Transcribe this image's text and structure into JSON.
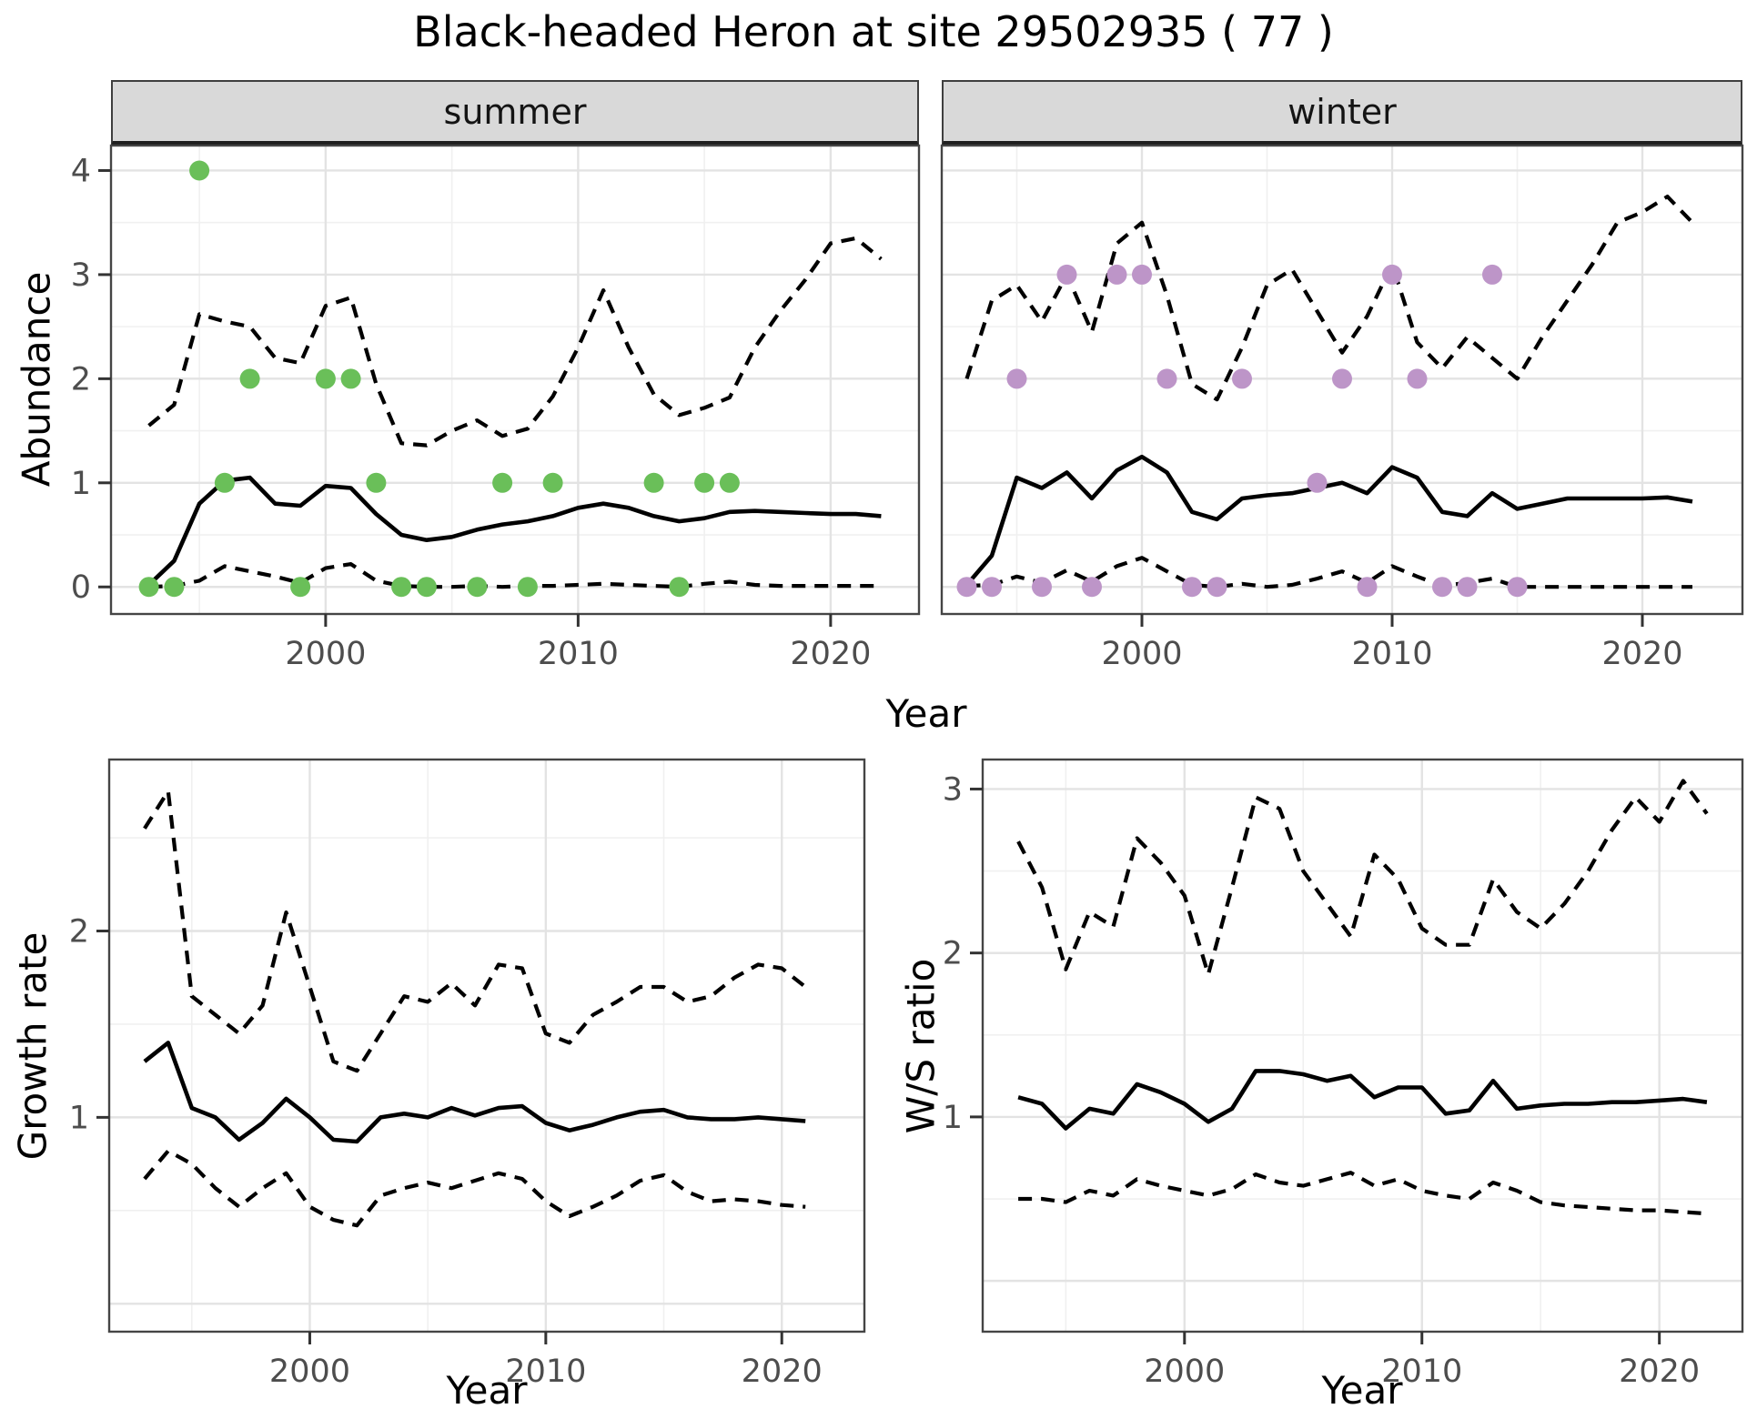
{
  "chart_data": {
    "type": "line",
    "title": "Black-headed Heron at site 29502935 ( 77 )",
    "xlabel": "Year",
    "grid": "major+minor",
    "legend": "none",
    "x_ticks": [
      2000,
      2010,
      2020
    ],
    "x_minor_ticks": [
      1995,
      2005,
      2015
    ],
    "colors": {
      "summer_points": "#6abf59",
      "winter_points": "#bd95c8",
      "lines": "#000000",
      "strip_bg": "#d9d9d9",
      "grid_major": "#e3e3e3",
      "grid_minor": "#f0f0f0"
    },
    "facets": [
      {
        "key": "summer",
        "facet_label": "summer",
        "ylabel": "Abundance",
        "xlim": [
          1991.5,
          2023.5
        ],
        "ylim": [
          -0.26,
          4.24
        ],
        "y_ticks": [
          0,
          1,
          2,
          3,
          4
        ],
        "series": [
          {
            "name": "upper-ci",
            "style": "dashed",
            "x": [
              1993,
              1994,
              1995,
              1996,
              1997,
              1998,
              1999,
              2000,
              2001,
              2002,
              2003,
              2004,
              2005,
              2006,
              2007,
              2008,
              2009,
              2010,
              2011,
              2012,
              2013,
              2014,
              2015,
              2016,
              2017,
              2018,
              2019,
              2020,
              2021,
              2022
            ],
            "y": [
              1.55,
              1.75,
              2.62,
              2.55,
              2.5,
              2.2,
              2.15,
              2.7,
              2.78,
              1.95,
              1.38,
              1.36,
              1.5,
              1.6,
              1.45,
              1.52,
              1.83,
              2.3,
              2.85,
              2.3,
              1.85,
              1.65,
              1.72,
              1.82,
              2.3,
              2.65,
              2.95,
              3.3,
              3.35,
              3.15
            ]
          },
          {
            "name": "median",
            "style": "solid",
            "x": [
              1993,
              1994,
              1995,
              1996,
              1997,
              1998,
              1999,
              2000,
              2001,
              2002,
              2003,
              2004,
              2005,
              2006,
              2007,
              2008,
              2009,
              2010,
              2011,
              2012,
              2013,
              2014,
              2015,
              2016,
              2017,
              2018,
              2019,
              2020,
              2021,
              2022
            ],
            "y": [
              0.02,
              0.25,
              0.8,
              1.02,
              1.05,
              0.8,
              0.78,
              0.97,
              0.95,
              0.7,
              0.5,
              0.45,
              0.48,
              0.55,
              0.6,
              0.63,
              0.68,
              0.76,
              0.8,
              0.76,
              0.68,
              0.63,
              0.66,
              0.72,
              0.73,
              0.72,
              0.71,
              0.7,
              0.7,
              0.68
            ]
          },
          {
            "name": "lower-ci",
            "style": "dashed",
            "x": [
              1993,
              1994,
              1995,
              1996,
              1997,
              1998,
              1999,
              2000,
              2001,
              2002,
              2003,
              2004,
              2005,
              2006,
              2007,
              2008,
              2009,
              2010,
              2011,
              2012,
              2013,
              2014,
              2015,
              2016,
              2017,
              2018,
              2019,
              2020,
              2021,
              2022
            ],
            "y": [
              0.0,
              0.01,
              0.06,
              0.2,
              0.15,
              0.1,
              0.04,
              0.18,
              0.22,
              0.06,
              0.01,
              0.0,
              0.0,
              0.01,
              0.0,
              0.01,
              0.01,
              0.02,
              0.03,
              0.02,
              0.01,
              0.0,
              0.03,
              0.05,
              0.02,
              0.01,
              0.01,
              0.01,
              0.01,
              0.01
            ]
          },
          {
            "name": "observations",
            "style": "points",
            "color": "#6abf59",
            "x": [
              1993,
              1994,
              1995,
              1996,
              1997,
              1999,
              2000,
              2001,
              2002,
              2003,
              2004,
              2006,
              2007,
              2008,
              2009,
              2013,
              2014,
              2015,
              2016
            ],
            "y": [
              0,
              0,
              4,
              1,
              2,
              0,
              2,
              2,
              1,
              0,
              0,
              0,
              1,
              0,
              1,
              1,
              0,
              1,
              1
            ]
          }
        ]
      },
      {
        "key": "winter",
        "facet_label": "winter",
        "ylabel": "Abundance",
        "xlim": [
          1992,
          2024
        ],
        "ylim": [
          -0.26,
          4.24
        ],
        "y_ticks": [],
        "series": [
          {
            "name": "upper-ci",
            "style": "dashed",
            "x": [
              1993,
              1994,
              1995,
              1996,
              1997,
              1998,
              1999,
              2000,
              2001,
              2002,
              2003,
              2004,
              2005,
              2006,
              2007,
              2008,
              2009,
              2010,
              2011,
              2012,
              2013,
              2014,
              2015,
              2016,
              2017,
              2018,
              2019,
              2020,
              2021,
              2022
            ],
            "y": [
              2.0,
              2.75,
              2.9,
              2.55,
              3.0,
              2.45,
              3.3,
              3.5,
              2.8,
              1.95,
              1.8,
              2.3,
              2.9,
              3.05,
              2.65,
              2.25,
              2.6,
              3.1,
              2.35,
              2.1,
              2.4,
              2.2,
              2.0,
              2.4,
              2.75,
              3.1,
              3.5,
              3.6,
              3.75,
              3.5
            ]
          },
          {
            "name": "median",
            "style": "solid",
            "x": [
              1993,
              1994,
              1995,
              1996,
              1997,
              1998,
              1999,
              2000,
              2001,
              2002,
              2003,
              2004,
              2005,
              2006,
              2007,
              2008,
              2009,
              2010,
              2011,
              2012,
              2013,
              2014,
              2015,
              2016,
              2017,
              2018,
              2019,
              2020,
              2021,
              2022
            ],
            "y": [
              0.02,
              0.3,
              1.05,
              0.95,
              1.1,
              0.85,
              1.12,
              1.25,
              1.1,
              0.72,
              0.65,
              0.85,
              0.88,
              0.9,
              0.95,
              1.0,
              0.9,
              1.15,
              1.05,
              0.72,
              0.68,
              0.9,
              0.75,
              0.8,
              0.85,
              0.85,
              0.85,
              0.85,
              0.86,
              0.82
            ]
          },
          {
            "name": "lower-ci",
            "style": "dashed",
            "x": [
              1993,
              1994,
              1995,
              1996,
              1997,
              1998,
              1999,
              2000,
              2001,
              2002,
              2003,
              2004,
              2005,
              2006,
              2007,
              2008,
              2009,
              2010,
              2011,
              2012,
              2013,
              2014,
              2015,
              2016,
              2017,
              2018,
              2019,
              2020,
              2021,
              2022
            ],
            "y": [
              0.01,
              0.02,
              0.1,
              0.04,
              0.16,
              0.05,
              0.2,
              0.28,
              0.15,
              0.02,
              0.0,
              0.03,
              0.0,
              0.02,
              0.08,
              0.15,
              0.04,
              0.2,
              0.1,
              0.01,
              0.04,
              0.08,
              0.0,
              0.0,
              0.0,
              0.0,
              0.0,
              0.0,
              0.0,
              0.0
            ]
          },
          {
            "name": "observations",
            "style": "points",
            "color": "#bd95c8",
            "x": [
              1993,
              1994,
              1995,
              1996,
              1997,
              1998,
              1999,
              2000,
              2001,
              2002,
              2003,
              2004,
              2007,
              2008,
              2009,
              2010,
              2011,
              2012,
              2013,
              2014,
              2015
            ],
            "y": [
              0,
              0,
              2,
              0,
              3,
              0,
              3,
              3,
              2,
              0,
              0,
              2,
              1,
              2,
              0,
              3,
              2,
              0,
              0,
              3,
              0
            ]
          }
        ]
      },
      {
        "key": "growth_rate",
        "facet_label": "",
        "ylabel": "Growth rate",
        "xlim": [
          1991.5,
          2023.5
        ],
        "ylim": [
          -0.15,
          2.92
        ],
        "y_ticks": [
          1,
          2
        ],
        "series": [
          {
            "name": "upper-ci",
            "style": "dashed",
            "x": [
              1993,
              1994,
              1995,
              1996,
              1997,
              1998,
              1999,
              2000,
              2001,
              2002,
              2003,
              2004,
              2005,
              2006,
              2007,
              2008,
              2009,
              2010,
              2011,
              2012,
              2013,
              2014,
              2015,
              2016,
              2017,
              2018,
              2019,
              2020,
              2021
            ],
            "y": [
              2.55,
              2.75,
              1.65,
              1.55,
              1.45,
              1.6,
              2.1,
              1.7,
              1.3,
              1.25,
              1.45,
              1.65,
              1.62,
              1.72,
              1.6,
              1.82,
              1.8,
              1.45,
              1.4,
              1.55,
              1.62,
              1.7,
              1.7,
              1.62,
              1.65,
              1.75,
              1.82,
              1.8,
              1.7
            ]
          },
          {
            "name": "median",
            "style": "solid",
            "x": [
              1993,
              1994,
              1995,
              1996,
              1997,
              1998,
              1999,
              2000,
              2001,
              2002,
              2003,
              2004,
              2005,
              2006,
              2007,
              2008,
              2009,
              2010,
              2011,
              2012,
              2013,
              2014,
              2015,
              2016,
              2017,
              2018,
              2019,
              2020,
              2021
            ],
            "y": [
              1.3,
              1.4,
              1.05,
              1.0,
              0.88,
              0.97,
              1.1,
              1.0,
              0.88,
              0.87,
              1.0,
              1.02,
              1.0,
              1.05,
              1.01,
              1.05,
              1.06,
              0.97,
              0.93,
              0.96,
              1.0,
              1.03,
              1.04,
              1.0,
              0.99,
              0.99,
              1.0,
              0.99,
              0.98
            ]
          },
          {
            "name": "lower-ci",
            "style": "dashed",
            "x": [
              1993,
              1994,
              1995,
              1996,
              1997,
              1998,
              1999,
              2000,
              2001,
              2002,
              2003,
              2004,
              2005,
              2006,
              2007,
              2008,
              2009,
              2010,
              2011,
              2012,
              2013,
              2014,
              2015,
              2016,
              2017,
              2018,
              2019,
              2020,
              2021
            ],
            "y": [
              0.67,
              0.82,
              0.75,
              0.62,
              0.52,
              0.62,
              0.7,
              0.52,
              0.45,
              0.42,
              0.58,
              0.62,
              0.65,
              0.62,
              0.66,
              0.7,
              0.67,
              0.55,
              0.47,
              0.52,
              0.58,
              0.66,
              0.69,
              0.6,
              0.55,
              0.56,
              0.55,
              0.53,
              0.52
            ]
          }
        ]
      },
      {
        "key": "ws_ratio",
        "facet_label": "",
        "ylabel": "W/S ratio",
        "xlim": [
          1991.5,
          2023.5
        ],
        "ylim": [
          -0.31,
          3.18
        ],
        "y_ticks": [
          1,
          2,
          3
        ],
        "series": [
          {
            "name": "upper-ci",
            "style": "dashed",
            "x": [
              1993,
              1994,
              1995,
              1996,
              1997,
              1998,
              1999,
              2000,
              2001,
              2002,
              2003,
              2004,
              2005,
              2006,
              2007,
              2008,
              2009,
              2010,
              2011,
              2012,
              2013,
              2014,
              2015,
              2016,
              2017,
              2018,
              2019,
              2020,
              2021,
              2022
            ],
            "y": [
              2.68,
              2.4,
              1.9,
              2.25,
              2.16,
              2.7,
              2.55,
              2.35,
              1.87,
              2.4,
              2.95,
              2.88,
              2.5,
              2.3,
              2.1,
              2.6,
              2.45,
              2.15,
              2.05,
              2.05,
              2.45,
              2.25,
              2.15,
              2.3,
              2.5,
              2.75,
              2.95,
              2.8,
              3.05,
              2.85
            ]
          },
          {
            "name": "median",
            "style": "solid",
            "x": [
              1993,
              1994,
              1995,
              1996,
              1997,
              1998,
              1999,
              2000,
              2001,
              2002,
              2003,
              2004,
              2005,
              2006,
              2007,
              2008,
              2009,
              2010,
              2011,
              2012,
              2013,
              2014,
              2015,
              2016,
              2017,
              2018,
              2019,
              2020,
              2021,
              2022
            ],
            "y": [
              1.12,
              1.08,
              0.93,
              1.05,
              1.02,
              1.2,
              1.15,
              1.08,
              0.97,
              1.05,
              1.28,
              1.28,
              1.26,
              1.22,
              1.25,
              1.12,
              1.18,
              1.18,
              1.02,
              1.04,
              1.22,
              1.05,
              1.07,
              1.08,
              1.08,
              1.09,
              1.09,
              1.1,
              1.11,
              1.09
            ]
          },
          {
            "name": "lower-ci",
            "style": "dashed",
            "x": [
              1993,
              1994,
              1995,
              1996,
              1997,
              1998,
              1999,
              2000,
              2001,
              2002,
              2003,
              2004,
              2005,
              2006,
              2007,
              2008,
              2009,
              2010,
              2011,
              2012,
              2013,
              2014,
              2015,
              2016,
              2017,
              2018,
              2019,
              2020,
              2021,
              2022
            ],
            "y": [
              0.5,
              0.5,
              0.48,
              0.55,
              0.52,
              0.62,
              0.58,
              0.55,
              0.52,
              0.56,
              0.65,
              0.6,
              0.58,
              0.62,
              0.66,
              0.58,
              0.62,
              0.55,
              0.52,
              0.5,
              0.6,
              0.55,
              0.48,
              0.46,
              0.45,
              0.44,
              0.43,
              0.43,
              0.42,
              0.41
            ]
          }
        ]
      }
    ]
  }
}
